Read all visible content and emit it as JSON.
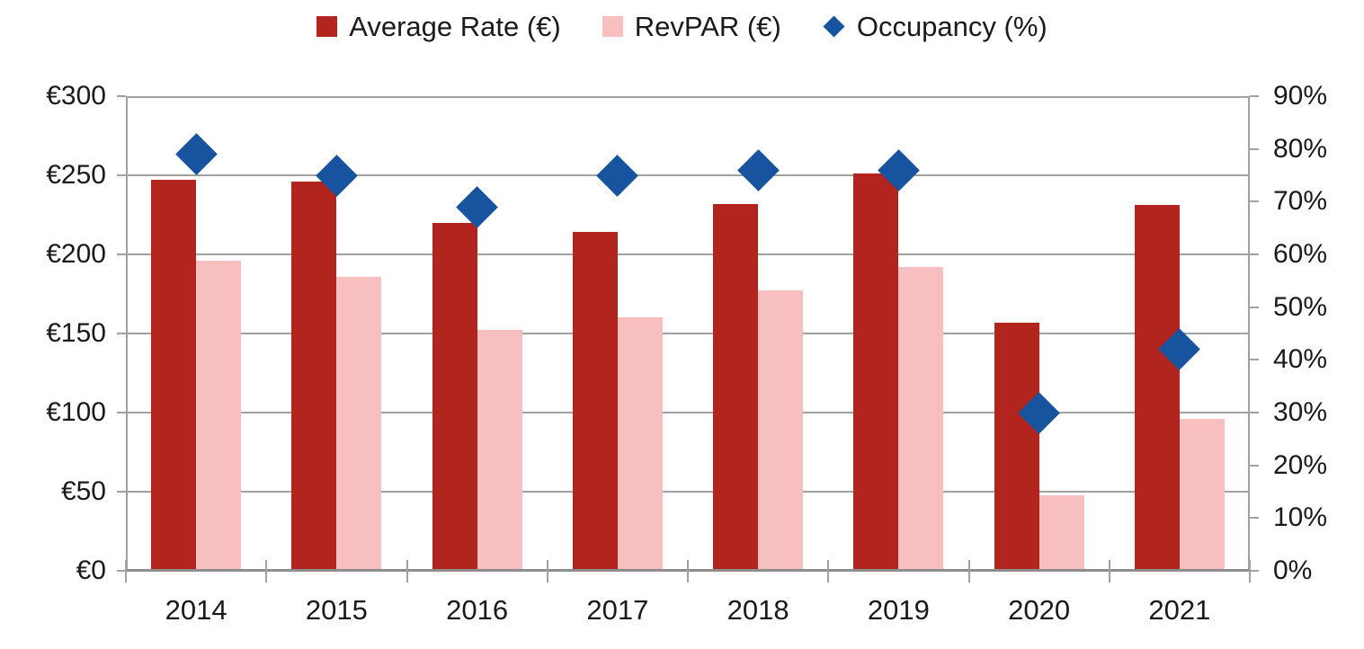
{
  "chart_data": {
    "type": "combo-bar-scatter",
    "title": "",
    "categories": [
      "2014",
      "2015",
      "2016",
      "2017",
      "2018",
      "2019",
      "2020",
      "2021"
    ],
    "series": [
      {
        "name": "Average Rate (€)",
        "type": "bar",
        "axis": "left",
        "marker": "square",
        "color": "#B2241E",
        "values": [
          247,
          246,
          220,
          214,
          232,
          251,
          157,
          231
        ]
      },
      {
        "name": "RevPAR (€)",
        "type": "bar",
        "axis": "left",
        "marker": "square",
        "color": "#F8BFC0",
        "values": [
          196,
          186,
          152,
          160,
          177,
          192,
          48,
          96
        ]
      },
      {
        "name": "Occupancy (%)",
        "type": "scatter",
        "axis": "right",
        "marker": "diamond",
        "color": "#17539E",
        "values": [
          79,
          75,
          69,
          75,
          76,
          76,
          30,
          42
        ]
      }
    ],
    "left_axis": {
      "min": 0,
      "max": 300,
      "step": 50,
      "labels": [
        "€0",
        "€50",
        "€100",
        "€150",
        "€200",
        "€250",
        "€300"
      ]
    },
    "right_axis": {
      "min": 0,
      "max": 90,
      "step": 10,
      "labels": [
        "0%",
        "10%",
        "20%",
        "30%",
        "40%",
        "50%",
        "60%",
        "70%",
        "80%",
        "90%"
      ]
    },
    "grid": true,
    "legend_position": "top",
    "colors": {
      "grid": "#A1A1A1",
      "axis": "#8E8E8E",
      "text": "#1A1A1A",
      "background": "#FFFFFF"
    }
  },
  "legend": {
    "items": [
      {
        "label": "Average Rate (€)"
      },
      {
        "label": "RevPAR (€)"
      },
      {
        "label": "Occupancy (%)"
      }
    ]
  }
}
